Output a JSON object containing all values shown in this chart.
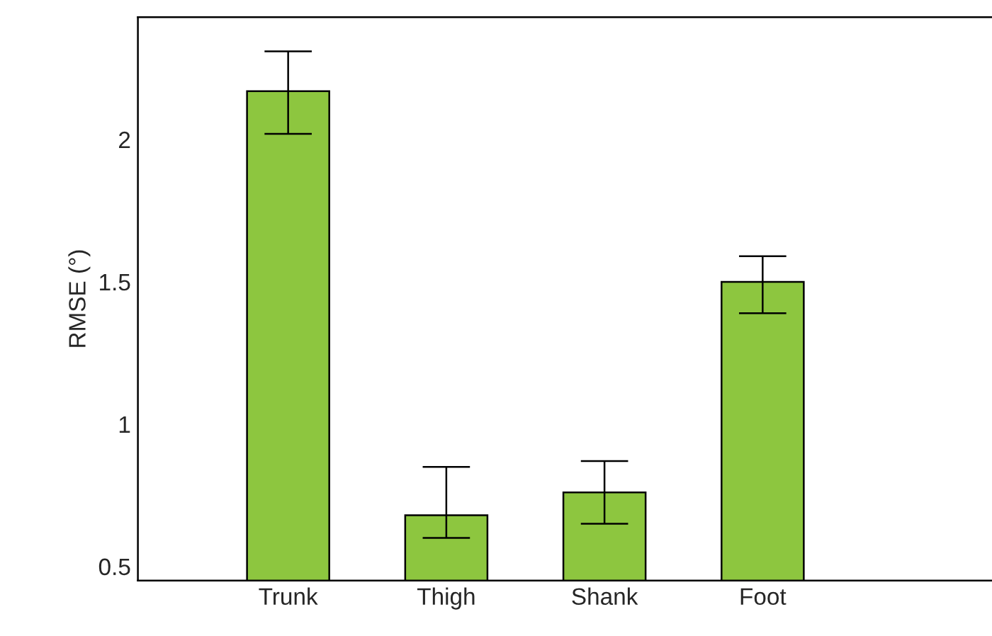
{
  "chart_data": {
    "type": "bar",
    "ylabel": "RMSE (°)",
    "categories": [
      "Trunk",
      "Thigh",
      "Shank",
      "Foot"
    ],
    "values": [
      2.17,
      0.68,
      0.76,
      1.5
    ],
    "errors": [
      [
        2.02,
        2.31
      ],
      [
        0.6,
        0.85
      ],
      [
        0.65,
        0.87
      ],
      [
        1.39,
        1.59
      ]
    ],
    "color": "#8dc63f",
    "ylim": [
      0.45,
      2.43
    ],
    "yticks": [
      0.5,
      1,
      1.5,
      2
    ],
    "grid": false,
    "legend": false
  }
}
